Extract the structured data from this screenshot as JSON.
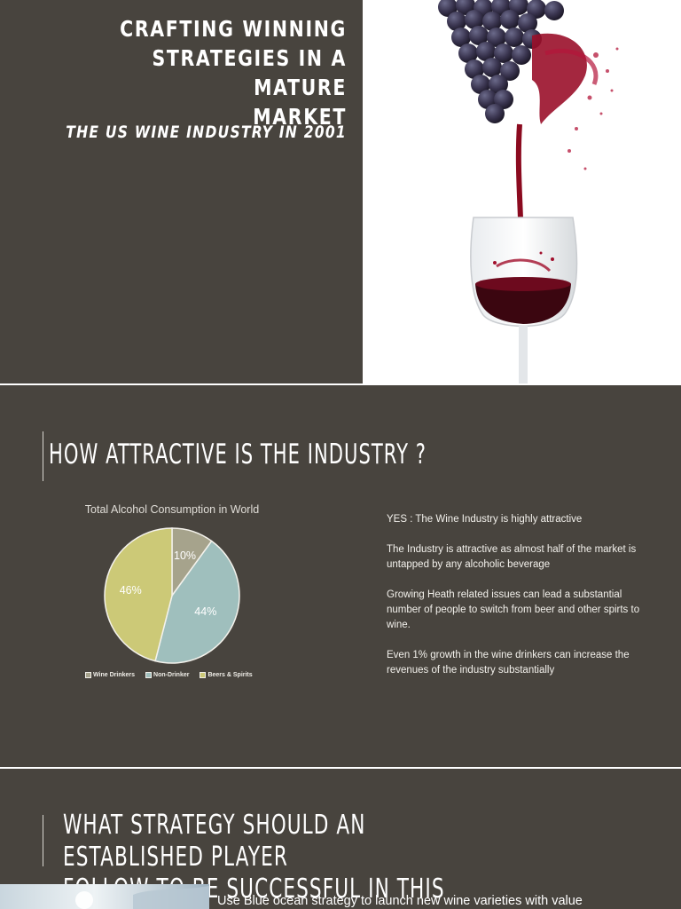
{
  "slide1": {
    "title": "CRAFTING WINNING\nSTRATEGIES IN A MATURE\nMARKET",
    "subtitle": "THE US WINE INDUSTRY IN 2001",
    "image_icon": "wine-pour-icon",
    "colors": {
      "background": "#48443e",
      "wine": "#8b0a1f",
      "grape": "#3a3550"
    }
  },
  "slide2": {
    "heading": "HOW  ATTRACTIVE IS THE INDUSTRY ?",
    "bullets": [
      "YES : The Wine Industry is highly attractive",
      "The Industry is attractive as almost half of the market is untapped by any alcoholic beverage",
      "Growing Heath related issues can lead a substantial number of people to switch from beer and other spirts to wine.",
      "Even 1% growth in the wine drinkers can increase the revenues of the industry substantially"
    ],
    "chart_data": {
      "type": "pie",
      "title": "Total Alcohol Consumption in World",
      "categories": [
        "Wine Drinkers",
        "Non-Drinker",
        "Beers & Spirits"
      ],
      "values": [
        10,
        44,
        46
      ],
      "value_labels": [
        "10%",
        "44%",
        "46%"
      ],
      "colors": [
        "#a6a38c",
        "#9fbfbd",
        "#ccc977"
      ],
      "legend_position": "bottom"
    }
  },
  "slide3": {
    "heading": "WHAT STRATEGY SHOULD AN ESTABLISHED PLAYER\nFOLLOW TO BE SUCCESSFUL IN THIS INDUSTRY?",
    "body": "Use Blue ocean strategy to launch new wine varieties with value",
    "photo_icon": "sky-photo-icon"
  }
}
